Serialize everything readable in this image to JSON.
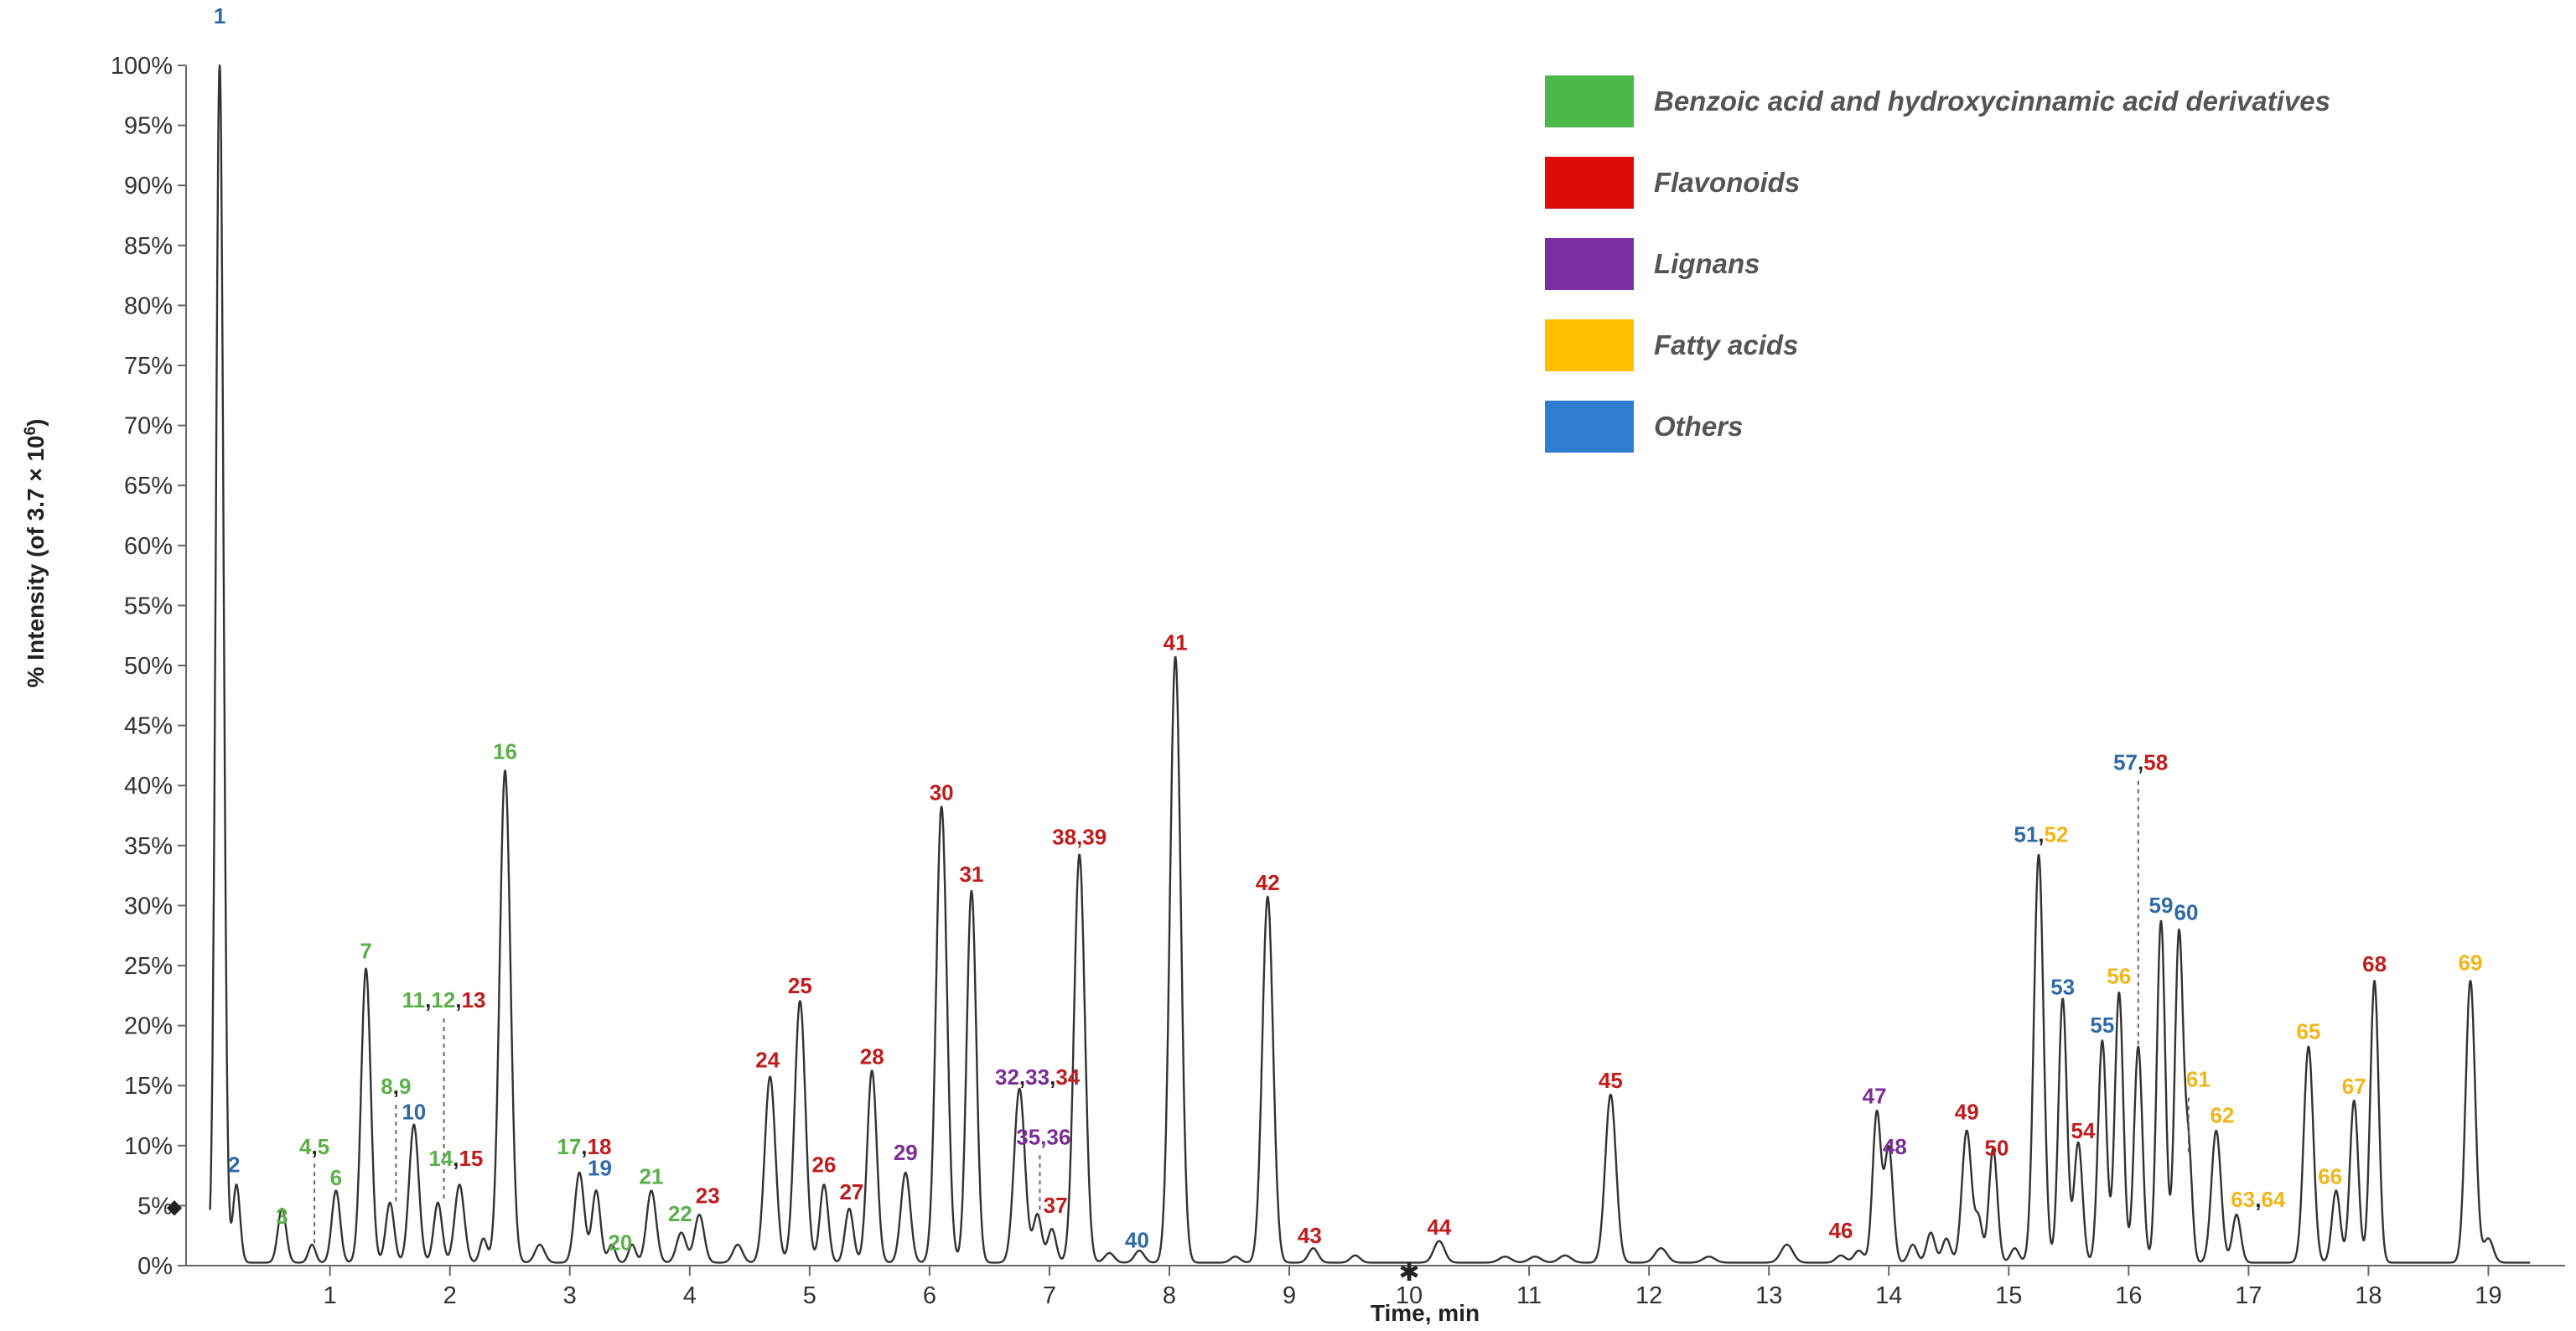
{
  "chart_data": {
    "type": "line",
    "title": "",
    "xlabel": "Time, min",
    "ylabel": "% Intensity (of 3.7 × 10",
    "ylabel_exponent": "6",
    "ylabel_close": ")",
    "xlim": [
      -0.2,
      19.5
    ],
    "ylim": [
      0,
      100
    ],
    "xticks": [
      1,
      2,
      3,
      4,
      5,
      6,
      7,
      8,
      9,
      10,
      11,
      12,
      13,
      14,
      15,
      16,
      17,
      18,
      19
    ],
    "xtick_labels": [
      "1",
      "2",
      "3",
      "4",
      "5",
      "6",
      "7",
      "8",
      "9",
      "10",
      "11",
      "12",
      "13",
      "14",
      "15",
      "16",
      "17",
      "18",
      "19"
    ],
    "yticks": [
      0,
      5,
      10,
      15,
      20,
      25,
      30,
      35,
      40,
      45,
      50,
      55,
      60,
      65,
      70,
      75,
      80,
      85,
      90,
      95,
      100
    ],
    "ytick_labels": [
      "0%",
      "5%",
      "10%",
      "15%",
      "20%",
      "25%",
      "30%",
      "35%",
      "40%",
      "45%",
      "50%",
      "55%",
      "60%",
      "65%",
      "70%",
      "75%",
      "80%",
      "85%",
      "90%",
      "95%",
      "100%"
    ],
    "colors": {
      "benzoic": "#5bb04a",
      "flavonoids": "#c01c1c",
      "lignans": "#7a2e96",
      "fatty": "#f2b61b",
      "others": "#2f6aa8",
      "text_dark": "#222222"
    },
    "legend": {
      "position": "top-right",
      "entries": [
        {
          "label": "Benzoic acid and hydroxycinnamic acid derivatives",
          "color": "#4cb84a"
        },
        {
          "label": "Flavonoids",
          "color": "#e00b0b"
        },
        {
          "label": "Lignans",
          "color": "#7a2fa2"
        },
        {
          "label": "Fatty acids",
          "color": "#ffc000"
        },
        {
          "label": "Others",
          "color": "#2f7cd0"
        }
      ]
    },
    "peaks": [
      [
        0.08,
        100,
        0.032
      ],
      [
        0.22,
        6.5,
        0.03
      ],
      [
        0.6,
        4.5,
        0.035
      ],
      [
        0.85,
        1.5,
        0.03
      ],
      [
        1.05,
        6,
        0.035
      ],
      [
        1.3,
        24.5,
        0.04
      ],
      [
        1.5,
        5,
        0.035
      ],
      [
        1.7,
        11.5,
        0.04
      ],
      [
        1.9,
        5,
        0.035
      ],
      [
        2.08,
        6.5,
        0.04
      ],
      [
        2.28,
        2,
        0.03
      ],
      [
        2.46,
        41,
        0.045
      ],
      [
        2.75,
        1.5,
        0.04
      ],
      [
        3.08,
        7.5,
        0.04
      ],
      [
        3.22,
        6,
        0.035
      ],
      [
        3.35,
        1.5,
        0.03
      ],
      [
        3.52,
        1.5,
        0.03
      ],
      [
        3.68,
        6,
        0.04
      ],
      [
        3.93,
        2.5,
        0.04
      ],
      [
        4.08,
        4,
        0.04
      ],
      [
        4.4,
        1.5,
        0.04
      ],
      [
        4.67,
        15.5,
        0.045
      ],
      [
        4.92,
        21.8,
        0.045
      ],
      [
        5.12,
        6.5,
        0.035
      ],
      [
        5.33,
        4.5,
        0.035
      ],
      [
        5.52,
        16,
        0.04
      ],
      [
        5.8,
        7.5,
        0.04
      ],
      [
        6.1,
        38,
        0.045
      ],
      [
        6.35,
        31,
        0.04
      ],
      [
        6.75,
        14.5,
        0.045
      ],
      [
        6.9,
        4,
        0.035
      ],
      [
        7.02,
        2.8,
        0.035
      ],
      [
        7.25,
        34,
        0.045
      ],
      [
        7.5,
        0.8,
        0.04
      ],
      [
        7.75,
        1,
        0.04
      ],
      [
        8.05,
        50.5,
        0.045
      ],
      [
        8.55,
        0.5,
        0.04
      ],
      [
        8.82,
        30.5,
        0.045
      ],
      [
        9.2,
        1.2,
        0.04
      ],
      [
        9.55,
        0.6,
        0.04
      ],
      [
        10.25,
        1.8,
        0.045
      ],
      [
        10.8,
        0.5,
        0.05
      ],
      [
        11.05,
        0.5,
        0.05
      ],
      [
        11.3,
        0.6,
        0.05
      ],
      [
        11.68,
        14,
        0.045
      ],
      [
        12.1,
        1.2,
        0.05
      ],
      [
        12.5,
        0.5,
        0.05
      ],
      [
        13.15,
        1.5,
        0.05
      ],
      [
        13.6,
        0.6,
        0.04
      ],
      [
        13.75,
        1,
        0.04
      ],
      [
        13.9,
        12.5,
        0.035
      ],
      [
        14.0,
        9.5,
        0.035
      ],
      [
        14.2,
        1.5,
        0.035
      ],
      [
        14.35,
        2.5,
        0.035
      ],
      [
        14.48,
        2,
        0.035
      ],
      [
        14.65,
        11,
        0.04
      ],
      [
        14.75,
        3.5,
        0.03
      ],
      [
        14.87,
        9.5,
        0.035
      ],
      [
        15.05,
        1.2,
        0.035
      ],
      [
        15.25,
        34,
        0.04
      ],
      [
        15.45,
        22,
        0.035
      ],
      [
        15.58,
        10,
        0.035
      ],
      [
        15.78,
        18.5,
        0.035
      ],
      [
        15.92,
        22.5,
        0.035
      ],
      [
        16.08,
        18,
        0.035
      ],
      [
        16.27,
        28.5,
        0.035
      ],
      [
        16.42,
        27.5,
        0.035
      ],
      [
        16.5,
        9,
        0.03
      ],
      [
        16.73,
        11,
        0.04
      ],
      [
        16.9,
        4,
        0.035
      ],
      [
        17.5,
        18,
        0.04
      ],
      [
        17.73,
        6,
        0.035
      ],
      [
        17.88,
        13.5,
        0.035
      ],
      [
        18.05,
        23.5,
        0.035
      ],
      [
        18.85,
        23.5,
        0.04
      ],
      [
        19.0,
        2,
        0.04
      ]
    ],
    "labels": [
      {
        "parts": [
          {
            "t": "1",
            "c": "others"
          }
        ],
        "x": 0.08,
        "y": 103.5
      },
      {
        "parts": [
          {
            "t": "2",
            "c": "others"
          }
        ],
        "x": 0.2,
        "y": 7.8
      },
      {
        "parts": [
          {
            "t": "3",
            "c": "benzoic"
          }
        ],
        "x": 0.6,
        "y": 3.5
      },
      {
        "parts": [
          {
            "t": "4",
            "c": "benzoic"
          },
          {
            "t": ",",
            "c": "text_dark"
          },
          {
            "t": "5",
            "c": "benzoic"
          }
        ],
        "x": 0.87,
        "y": 9.3
      },
      {
        "parts": [
          {
            "t": "6",
            "c": "benzoic"
          }
        ],
        "x": 1.05,
        "y": 6.7
      },
      {
        "parts": [
          {
            "t": "7",
            "c": "benzoic"
          }
        ],
        "x": 1.3,
        "y": 25.6
      },
      {
        "parts": [
          {
            "t": "8",
            "c": "benzoic"
          },
          {
            "t": ",",
            "c": "text_dark"
          },
          {
            "t": "9",
            "c": "benzoic"
          }
        ],
        "x": 1.55,
        "y": 14.3
      },
      {
        "parts": [
          {
            "t": "10",
            "c": "others"
          }
        ],
        "x": 1.7,
        "y": 12.2
      },
      {
        "parts": [
          {
            "t": "11",
            "c": "benzoic"
          },
          {
            "t": ",",
            "c": "text_dark"
          },
          {
            "t": "12",
            "c": "benzoic"
          },
          {
            "t": ",",
            "c": "text_dark"
          },
          {
            "t": "13",
            "c": "flavonoids"
          }
        ],
        "x": 1.95,
        "y": 21.5
      },
      {
        "parts": [
          {
            "t": "14",
            "c": "benzoic"
          },
          {
            "t": ",",
            "c": "text_dark"
          },
          {
            "t": "15",
            "c": "flavonoids"
          }
        ],
        "x": 2.05,
        "y": 8.3
      },
      {
        "parts": [
          {
            "t": "16",
            "c": "benzoic"
          }
        ],
        "x": 2.46,
        "y": 42.2
      },
      {
        "parts": [
          {
            "t": "17",
            "c": "benzoic"
          },
          {
            "t": ",",
            "c": "text_dark"
          },
          {
            "t": "18",
            "c": "flavonoids"
          }
        ],
        "x": 3.12,
        "y": 9.3
      },
      {
        "parts": [
          {
            "t": "19",
            "c": "others"
          }
        ],
        "x": 3.25,
        "y": 7.5
      },
      {
        "parts": [
          {
            "t": "20",
            "c": "benzoic"
          }
        ],
        "x": 3.42,
        "y": 1.3
      },
      {
        "parts": [
          {
            "t": "21",
            "c": "benzoic"
          }
        ],
        "x": 3.68,
        "y": 6.8
      },
      {
        "parts": [
          {
            "t": "22",
            "c": "benzoic"
          }
        ],
        "x": 3.92,
        "y": 3.7
      },
      {
        "parts": [
          {
            "t": "23",
            "c": "flavonoids"
          }
        ],
        "x": 4.15,
        "y": 5.2
      },
      {
        "parts": [
          {
            "t": "24",
            "c": "flavonoids"
          }
        ],
        "x": 4.65,
        "y": 16.5
      },
      {
        "parts": [
          {
            "t": "25",
            "c": "flavonoids"
          }
        ],
        "x": 4.92,
        "y": 22.7
      },
      {
        "parts": [
          {
            "t": "26",
            "c": "flavonoids"
          }
        ],
        "x": 5.12,
        "y": 7.8
      },
      {
        "parts": [
          {
            "t": "27",
            "c": "flavonoids"
          }
        ],
        "x": 5.35,
        "y": 5.5
      },
      {
        "parts": [
          {
            "t": "28",
            "c": "flavonoids"
          }
        ],
        "x": 5.52,
        "y": 16.8
      },
      {
        "parts": [
          {
            "t": "29",
            "c": "lignans"
          }
        ],
        "x": 5.8,
        "y": 8.8
      },
      {
        "parts": [
          {
            "t": "30",
            "c": "flavonoids"
          }
        ],
        "x": 6.1,
        "y": 38.8
      },
      {
        "parts": [
          {
            "t": "31",
            "c": "flavonoids"
          }
        ],
        "x": 6.35,
        "y": 32
      },
      {
        "parts": [
          {
            "t": "32",
            "c": "lignans"
          },
          {
            "t": ",",
            "c": "text_dark"
          },
          {
            "t": "33",
            "c": "lignans"
          },
          {
            "t": ",",
            "c": "text_dark"
          },
          {
            "t": "34",
            "c": "flavonoids"
          }
        ],
        "x": 6.9,
        "y": 15.1
      },
      {
        "parts": [
          {
            "t": "35",
            "c": "lignans"
          },
          {
            "t": ",",
            "c": "lignans"
          },
          {
            "t": "36",
            "c": "lignans"
          }
        ],
        "x": 6.95,
        "y": 10.1
      },
      {
        "parts": [
          {
            "t": "37",
            "c": "flavonoids"
          }
        ],
        "x": 7.05,
        "y": 4.4
      },
      {
        "parts": [
          {
            "t": "38",
            "c": "flavonoids"
          },
          {
            "t": ",",
            "c": "flavonoids"
          },
          {
            "t": "39",
            "c": "flavonoids"
          }
        ],
        "x": 7.25,
        "y": 35.1
      },
      {
        "parts": [
          {
            "t": "40",
            "c": "others"
          }
        ],
        "x": 7.73,
        "y": 1.5
      },
      {
        "parts": [
          {
            "t": "41",
            "c": "flavonoids"
          }
        ],
        "x": 8.05,
        "y": 51.3
      },
      {
        "parts": [
          {
            "t": "42",
            "c": "flavonoids"
          }
        ],
        "x": 8.82,
        "y": 31.3
      },
      {
        "parts": [
          {
            "t": "43",
            "c": "flavonoids"
          }
        ],
        "x": 9.17,
        "y": 1.9
      },
      {
        "parts": [
          {
            "t": "44",
            "c": "flavonoids"
          }
        ],
        "x": 10.25,
        "y": 2.6
      },
      {
        "parts": [
          {
            "t": "45",
            "c": "flavonoids"
          }
        ],
        "x": 11.68,
        "y": 14.8
      },
      {
        "parts": [
          {
            "t": "46",
            "c": "flavonoids"
          }
        ],
        "x": 13.6,
        "y": 2.3
      },
      {
        "parts": [
          {
            "t": "47",
            "c": "lignans"
          }
        ],
        "x": 13.88,
        "y": 13.5
      },
      {
        "parts": [
          {
            "t": "48",
            "c": "lignans"
          }
        ],
        "x": 14.05,
        "y": 9.3
      },
      {
        "parts": [
          {
            "t": "49",
            "c": "flavonoids"
          }
        ],
        "x": 14.65,
        "y": 12.2
      },
      {
        "parts": [
          {
            "t": "50",
            "c": "flavonoids"
          }
        ],
        "x": 14.9,
        "y": 9.2
      },
      {
        "parts": [
          {
            "t": "51",
            "c": "others"
          },
          {
            "t": ",",
            "c": "text_dark"
          },
          {
            "t": "52",
            "c": "fatty"
          }
        ],
        "x": 15.27,
        "y": 35.3
      },
      {
        "parts": [
          {
            "t": "53",
            "c": "others"
          }
        ],
        "x": 15.45,
        "y": 22.6
      },
      {
        "parts": [
          {
            "t": "54",
            "c": "flavonoids"
          }
        ],
        "x": 15.62,
        "y": 10.6
      },
      {
        "parts": [
          {
            "t": "55",
            "c": "others"
          }
        ],
        "x": 15.78,
        "y": 19.4
      },
      {
        "parts": [
          {
            "t": "56",
            "c": "fatty"
          }
        ],
        "x": 15.92,
        "y": 23.5
      },
      {
        "parts": [
          {
            "t": "57",
            "c": "others"
          },
          {
            "t": ",",
            "c": "text_dark"
          },
          {
            "t": "58",
            "c": "flavonoids"
          }
        ],
        "x": 16.1,
        "y": 41.3
      },
      {
        "parts": [
          {
            "t": "59",
            "c": "others"
          }
        ],
        "x": 16.27,
        "y": 29.4
      },
      {
        "parts": [
          {
            "t": "60",
            "c": "others"
          }
        ],
        "x": 16.48,
        "y": 28.8
      },
      {
        "parts": [
          {
            "t": "61",
            "c": "fatty"
          }
        ],
        "x": 16.58,
        "y": 14.9
      },
      {
        "parts": [
          {
            "t": "62",
            "c": "fatty"
          }
        ],
        "x": 16.78,
        "y": 11.9
      },
      {
        "parts": [
          {
            "t": "63",
            "c": "fatty"
          },
          {
            "t": ",",
            "c": "text_dark"
          },
          {
            "t": "64",
            "c": "fatty"
          }
        ],
        "x": 17.08,
        "y": 4.9
      },
      {
        "parts": [
          {
            "t": "65",
            "c": "fatty"
          }
        ],
        "x": 17.5,
        "y": 18.9
      },
      {
        "parts": [
          {
            "t": "66",
            "c": "fatty"
          }
        ],
        "x": 17.68,
        "y": 6.8
      },
      {
        "parts": [
          {
            "t": "67",
            "c": "fatty"
          }
        ],
        "x": 17.88,
        "y": 14.3
      },
      {
        "parts": [
          {
            "t": "68",
            "c": "flavonoids"
          }
        ],
        "x": 18.05,
        "y": 24.5
      },
      {
        "parts": [
          {
            "t": "69",
            "c": "fatty"
          }
        ],
        "x": 18.85,
        "y": 24.6
      }
    ],
    "leaders": [
      {
        "x": 0.87,
        "y_from": 8.5,
        "y_to": 1.5
      },
      {
        "x": 1.55,
        "y_from": 13.4,
        "y_to": 5.2
      },
      {
        "x": 1.95,
        "y_from": 20.6,
        "y_to": 5.4
      },
      {
        "x": 6.92,
        "y_from": 9.2,
        "y_to": 4.4
      },
      {
        "x": 16.08,
        "y_from": 40.4,
        "y_to": 18.2
      },
      {
        "x": 16.5,
        "y_from": 14.0,
        "y_to": 9.2
      }
    ],
    "markers": [
      {
        "name": "baseline-arrow-marker",
        "glyph": "◆",
        "x": -0.2,
        "y": 5
      },
      {
        "name": "asterisk-marker",
        "glyph": "✱",
        "x": 10.0,
        "y": 0
      }
    ]
  }
}
